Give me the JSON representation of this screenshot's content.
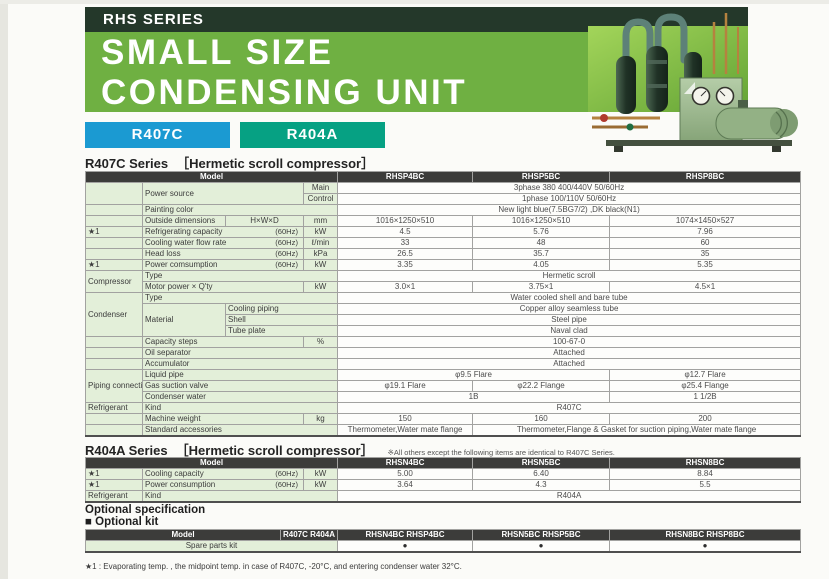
{
  "header": {
    "series_tag": "RHS SERIES",
    "title_line1": "SMALL SIZE",
    "title_line2": "CONDENSING UNIT",
    "badge_r407c": "R407C",
    "badge_r404a": "R404A",
    "photo": "condensing-unit-product-photo"
  },
  "colors": {
    "dark_bar": "#24382a",
    "banner_green": "#6fb042",
    "badge_blue": "#1b9ad2",
    "badge_teal": "#06a183",
    "table_header_dark": "#3c3c3a",
    "label_cell_green": "#e3efd9"
  },
  "r407c_section": {
    "heading": "R407C Series",
    "subheading": "［Hermetic scroll compressor］"
  },
  "r404a_section": {
    "heading": "R404A Series",
    "subheading": "［Hermetic scroll compressor］",
    "note": "※All others except the following items are identical to R407C Series."
  },
  "optional_section": {
    "heading": "Optional specification",
    "subheading": "■ Optional kit"
  },
  "footnote": "★1 : Evaporating temp. , the midpoint temp. in case of R407C, -20°C, and entering condenser water 32°C.",
  "tables": {
    "r407c": {
      "columns": [
        57,
        83,
        78,
        34,
        135,
        137,
        191
      ],
      "rows": [
        [
          {
            "t": "Model",
            "c": "h",
            "cs": 4
          },
          {
            "t": "RHSP4BC",
            "c": "h"
          },
          {
            "t": "RHSP5BC",
            "c": "h"
          },
          {
            "t": "RHSP8BC",
            "c": "h"
          }
        ],
        [
          {
            "t": "",
            "c": "g",
            "rs": 2
          },
          {
            "t": "Power source",
            "c": "g",
            "cs": 2,
            "rs": 2
          },
          {
            "t": "Main",
            "c": "u"
          },
          {
            "t": "3phase 380 400/440V 50/60Hz",
            "c": "v",
            "cs": 3
          }
        ],
        [
          {
            "t": "Control",
            "c": "u"
          },
          {
            "t": "1phase 100/110V 50/60Hz",
            "c": "v",
            "cs": 3
          }
        ],
        [
          {
            "t": "",
            "c": "g"
          },
          {
            "t": "Painting color",
            "c": "g",
            "cs": 3
          },
          {
            "t": "New light blue(7.5BG7/2) ,DK black(N1)",
            "c": "v",
            "cs": 3
          }
        ],
        [
          {
            "t": "",
            "c": "g"
          },
          {
            "t": "Outside dimensions",
            "c": "g"
          },
          {
            "t": "H×W×D",
            "c": "gc"
          },
          {
            "t": "mm",
            "c": "u"
          },
          {
            "t": "1016×1250×510",
            "c": "v"
          },
          {
            "t": "1016×1250×510",
            "c": "v"
          },
          {
            "t": "1074×1450×527",
            "c": "v"
          }
        ],
        [
          {
            "t": "★1",
            "c": "g"
          },
          {
            "t": "Refrigerating capacity",
            "r": "(60Hz)",
            "c": "g",
            "cs": 2
          },
          {
            "t": "kW",
            "c": "u"
          },
          {
            "t": "4.5",
            "c": "v"
          },
          {
            "t": "5.76",
            "c": "v"
          },
          {
            "t": "7.96",
            "c": "v"
          }
        ],
        [
          {
            "t": "",
            "c": "g"
          },
          {
            "t": "Cooling water flow rate",
            "r": "(60Hz)",
            "c": "g",
            "cs": 2
          },
          {
            "t": "ℓ/min",
            "c": "u"
          },
          {
            "t": "33",
            "c": "v"
          },
          {
            "t": "48",
            "c": "v"
          },
          {
            "t": "60",
            "c": "v"
          }
        ],
        [
          {
            "t": "",
            "c": "g"
          },
          {
            "t": "Head loss",
            "r": "(60Hz)",
            "c": "g",
            "cs": 2
          },
          {
            "t": "kPa",
            "c": "u"
          },
          {
            "t": "26.5",
            "c": "v"
          },
          {
            "t": "35.7",
            "c": "v"
          },
          {
            "t": "35",
            "c": "v"
          }
        ],
        [
          {
            "t": "★1",
            "c": "g"
          },
          {
            "t": "Power comsumption",
            "r": "(60Hz)",
            "c": "g",
            "cs": 2
          },
          {
            "t": "kW",
            "c": "u"
          },
          {
            "t": "3.35",
            "c": "v"
          },
          {
            "t": "4.05",
            "c": "v"
          },
          {
            "t": "5.35",
            "c": "v"
          }
        ],
        [
          {
            "t": "Compressor",
            "c": "g",
            "rs": 2
          },
          {
            "t": "Type",
            "c": "g",
            "cs": 3
          },
          {
            "t": "Hermetic scroll",
            "c": "v",
            "cs": 3
          }
        ],
        [
          {
            "t": "Motor power × Q'ty",
            "c": "g",
            "cs": 2
          },
          {
            "t": "kW",
            "c": "u"
          },
          {
            "t": "3.0×1",
            "c": "v"
          },
          {
            "t": "3.75×1",
            "c": "v"
          },
          {
            "t": "4.5×1",
            "c": "v"
          }
        ],
        [
          {
            "t": "Condenser",
            "c": "g",
            "rs": 4
          },
          {
            "t": "Type",
            "c": "g",
            "cs": 3
          },
          {
            "t": "Water cooled shell and bare tube",
            "c": "v",
            "cs": 3
          }
        ],
        [
          {
            "t": "Material",
            "c": "g",
            "rs": 3
          },
          {
            "t": "Cooling piping",
            "c": "g",
            "cs": 2
          },
          {
            "t": "Copper alloy seamless tube",
            "c": "v",
            "cs": 3
          }
        ],
        [
          {
            "t": "Shell",
            "c": "g",
            "cs": 2
          },
          {
            "t": "Steel pipe",
            "c": "v",
            "cs": 3
          }
        ],
        [
          {
            "t": "Tube plate",
            "c": "g",
            "cs": 2
          },
          {
            "t": "Naval clad",
            "c": "v",
            "cs": 3
          }
        ],
        [
          {
            "t": "",
            "c": "g"
          },
          {
            "t": "Capacity steps",
            "c": "g",
            "cs": 2
          },
          {
            "t": "%",
            "c": "u"
          },
          {
            "t": "100-67-0",
            "c": "v",
            "cs": 3
          }
        ],
        [
          {
            "t": "",
            "c": "g"
          },
          {
            "t": "Oil separator",
            "c": "g",
            "cs": 3
          },
          {
            "t": "Attached",
            "c": "v",
            "cs": 3
          }
        ],
        [
          {
            "t": "",
            "c": "g"
          },
          {
            "t": "Accumulator",
            "c": "g",
            "cs": 3
          },
          {
            "t": "Attached",
            "c": "v",
            "cs": 3
          }
        ],
        [
          {
            "t": "Piping connection",
            "c": "g",
            "rs": 3
          },
          {
            "t": "Liquid pipe",
            "c": "g",
            "cs": 3
          },
          {
            "t": "φ9.5 Flare",
            "c": "v",
            "cs": 2
          },
          {
            "t": "φ12.7 Flare",
            "c": "v"
          }
        ],
        [
          {
            "t": "Gas suction valve",
            "c": "g",
            "cs": 3
          },
          {
            "t": "φ19.1 Flare",
            "c": "v"
          },
          {
            "t": "φ22.2 Flange",
            "c": "v"
          },
          {
            "t": "φ25.4 Flange",
            "c": "v"
          }
        ],
        [
          {
            "t": "Condenser water",
            "c": "g",
            "cs": 3
          },
          {
            "t": "1B",
            "c": "v",
            "cs": 2
          },
          {
            "t": "1 1/2B",
            "c": "v"
          }
        ],
        [
          {
            "t": "Refrigerant",
            "c": "g"
          },
          {
            "t": "Kind",
            "c": "g",
            "cs": 3
          },
          {
            "t": "R407C",
            "c": "v",
            "cs": 3
          }
        ],
        [
          {
            "t": "",
            "c": "g"
          },
          {
            "t": "Machine weight",
            "c": "g",
            "cs": 2
          },
          {
            "t": "kg",
            "c": "u"
          },
          {
            "t": "150",
            "c": "v"
          },
          {
            "t": "160",
            "c": "v"
          },
          {
            "t": "200",
            "c": "v"
          }
        ],
        [
          {
            "t": "",
            "c": "g"
          },
          {
            "t": "Standard accessories",
            "c": "g",
            "cs": 3
          },
          {
            "t": "Thermometer,Water mate flange",
            "c": "v sm"
          },
          {
            "t": "Thermometer,Flange & Gasket for suction piping,Water mate flange",
            "c": "v sm",
            "cs": 2
          }
        ]
      ]
    },
    "r404a": {
      "columns": [
        57,
        83,
        78,
        34,
        135,
        137,
        191
      ],
      "rows": [
        [
          {
            "t": "Model",
            "c": "h",
            "cs": 4
          },
          {
            "t": "RHSN4BC",
            "c": "h"
          },
          {
            "t": "RHSN5BC",
            "c": "h"
          },
          {
            "t": "RHSN8BC",
            "c": "h"
          }
        ],
        [
          {
            "t": "★1",
            "c": "g"
          },
          {
            "t": "Cooling capacity",
            "r": "(60Hz)",
            "c": "g",
            "cs": 2
          },
          {
            "t": "kW",
            "c": "u"
          },
          {
            "t": "5.00",
            "c": "v"
          },
          {
            "t": "6.40",
            "c": "v"
          },
          {
            "t": "8.84",
            "c": "v"
          }
        ],
        [
          {
            "t": "★1",
            "c": "g"
          },
          {
            "t": "Power consumption",
            "r": "(60Hz)",
            "c": "g",
            "cs": 2
          },
          {
            "t": "kW",
            "c": "u"
          },
          {
            "t": "3.64",
            "c": "v"
          },
          {
            "t": "4.3",
            "c": "v"
          },
          {
            "t": "5.5",
            "c": "v"
          }
        ],
        [
          {
            "t": "Refrigerant",
            "c": "g"
          },
          {
            "t": "Kind",
            "c": "g",
            "cs": 3
          },
          {
            "t": "R404A",
            "c": "v",
            "cs": 3
          }
        ]
      ]
    },
    "optional": {
      "columns": [
        195,
        57,
        135,
        137,
        191
      ],
      "rows": [
        [
          {
            "t": "Model",
            "c": "h"
          },
          {
            "t": "R407C\nR404A",
            "c": "h two ng"
          },
          {
            "t": "RHSN4BC\nRHSP4BC",
            "c": "h two"
          },
          {
            "t": "RHSN5BC\nRHSP5BC",
            "c": "h two"
          },
          {
            "t": "RHSN8BC\nRHSP8BC",
            "c": "h two"
          }
        ],
        [
          {
            "t": "Spare parts kit",
            "c": "gc",
            "cs": 2
          },
          {
            "t": "●",
            "c": "v dot"
          },
          {
            "t": "●",
            "c": "v dot"
          },
          {
            "t": "●",
            "c": "v dot"
          }
        ]
      ]
    }
  }
}
